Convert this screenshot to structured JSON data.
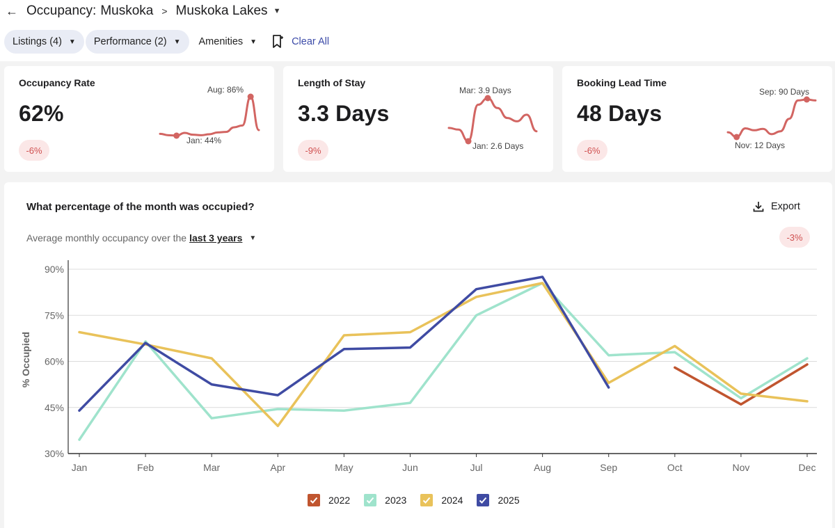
{
  "header": {
    "back_icon": "arrow-left-icon",
    "title_prefix": "Occupancy:",
    "region": "Muskoka",
    "subregion": "Muskoka Lakes"
  },
  "filters": {
    "listings": "Listings (4)",
    "performance": "Performance (2)",
    "amenities": "Amenities",
    "clear_all": "Clear All"
  },
  "cards": [
    {
      "title": "Occupancy Rate",
      "value": "62%",
      "change": "-6%",
      "high_label": "Aug: 86%",
      "low_label": "Jan: 44%"
    },
    {
      "title": "Length of Stay",
      "value": "3.3 Days",
      "change": "-9%",
      "high_label": "Mar: 3.9 Days",
      "low_label": "Jan: 2.6 Days"
    },
    {
      "title": "Booking Lead Time",
      "value": "48 Days",
      "change": "-6%",
      "high_label": "Sep: 90 Days",
      "low_label": "Nov: 12 Days"
    }
  ],
  "main": {
    "question": "What percentage of the month was occupied?",
    "export_label": "Export",
    "subtitle_prefix": "Average monthly occupancy over the",
    "period_link": "last 3 years",
    "change": "-3%"
  },
  "colors": {
    "2022": "#c0552f",
    "2023": "#9fe3cc",
    "2024": "#e9c25a",
    "2025": "#3f4ba3",
    "sparkline": "#d26562"
  },
  "chart_data": {
    "type": "line",
    "title": "What percentage of the month was occupied?",
    "ylabel": "% Occupied",
    "xlabel": "",
    "categories": [
      "Jan",
      "Feb",
      "Mar",
      "Apr",
      "May",
      "Jun",
      "Jul",
      "Aug",
      "Sep",
      "Oct",
      "Nov",
      "Dec"
    ],
    "yticks": [
      "90%",
      "75%",
      "60%",
      "45%",
      "30%"
    ],
    "ylim": [
      30,
      90
    ],
    "series": [
      {
        "name": "2022",
        "values": [
          null,
          null,
          null,
          null,
          null,
          null,
          null,
          null,
          null,
          58,
          46,
          59
        ]
      },
      {
        "name": "2023",
        "values": [
          34.5,
          66.5,
          41.5,
          44.5,
          44,
          46.5,
          75,
          85.5,
          62,
          63,
          48,
          61
        ]
      },
      {
        "name": "2024",
        "values": [
          69.5,
          65.5,
          61,
          39,
          68.5,
          69.5,
          81,
          85.5,
          53,
          65,
          49.5,
          47
        ]
      },
      {
        "name": "2025",
        "values": [
          44,
          66,
          52.5,
          49,
          64,
          64.5,
          83.5,
          87.5,
          51.5,
          null,
          null,
          null
        ]
      }
    ]
  },
  "sparklines": [
    [
      46,
      44.5,
      44,
      47,
      45,
      44.5,
      45.5,
      47.5,
      48,
      53,
      55,
      86,
      50
    ],
    [
      3.0,
      2.95,
      2.6,
      3.7,
      3.9,
      3.6,
      3.3,
      3.2,
      3.4,
      2.9
    ],
    [
      22,
      12,
      30,
      26,
      29,
      18,
      24,
      50,
      88,
      90,
      88
    ]
  ]
}
